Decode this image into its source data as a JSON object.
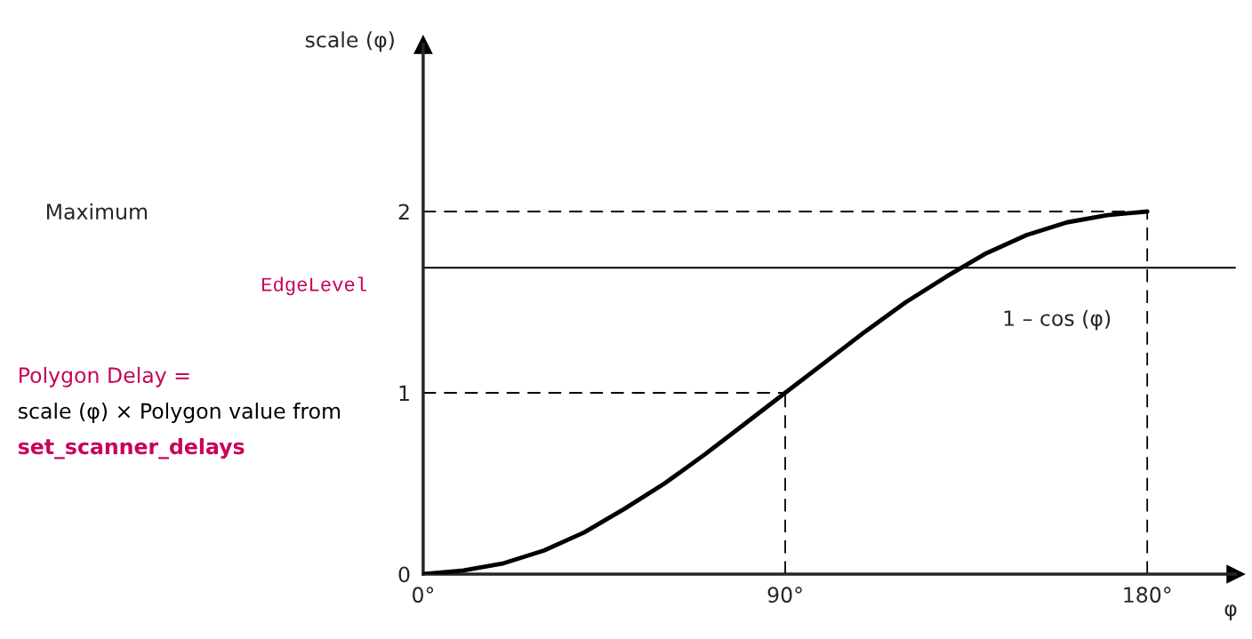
{
  "chart_data": {
    "type": "line",
    "ylabel": "scale (φ)",
    "xlabel": "φ",
    "x": [
      0,
      10,
      20,
      30,
      40,
      50,
      60,
      70,
      80,
      90,
      100,
      110,
      120,
      130,
      140,
      150,
      160,
      170,
      180
    ],
    "series": [
      {
        "color": "#000000",
        "values": [
          0,
          0.02,
          0.06,
          0.13,
          0.23,
          0.36,
          0.5,
          0.66,
          0.83,
          1,
          1.17,
          1.34,
          1.5,
          1.64,
          1.77,
          1.87,
          1.94,
          1.98,
          2
        ]
      }
    ],
    "xlim": [
      0,
      202
    ],
    "ylim": [
      0,
      2.92
    ],
    "xticks": [
      {
        "value": 0,
        "label": "0°"
      },
      {
        "value": 90,
        "label": "90°"
      },
      {
        "value": 180,
        "label": "180°"
      }
    ],
    "yticks": [
      0,
      1,
      2
    ],
    "ref_lines": [
      {
        "axis": "y",
        "value": 1.69,
        "label": "EdgeLevel",
        "color": "#000000",
        "line_style": "solid"
      },
      {
        "axis": "y",
        "value": 1,
        "color": "#000000",
        "line_style": "dashed"
      },
      {
        "axis": "y",
        "value": 2,
        "color": "#000000",
        "line_style": "dashed"
      },
      {
        "axis": "x",
        "value": 90,
        "color": "#000000",
        "line_style": "dashed"
      },
      {
        "axis": "x",
        "value": 180,
        "color": "#000000",
        "line_style": "dashed"
      }
    ],
    "annotations": [
      "Maximum",
      "Polygon Delay =\nscale (φ) × Polygon value from\nset_scanner_delays",
      "1 – cos (φ)"
    ],
    "grid": false,
    "marker": "none",
    "line_style": "solid"
  }
}
